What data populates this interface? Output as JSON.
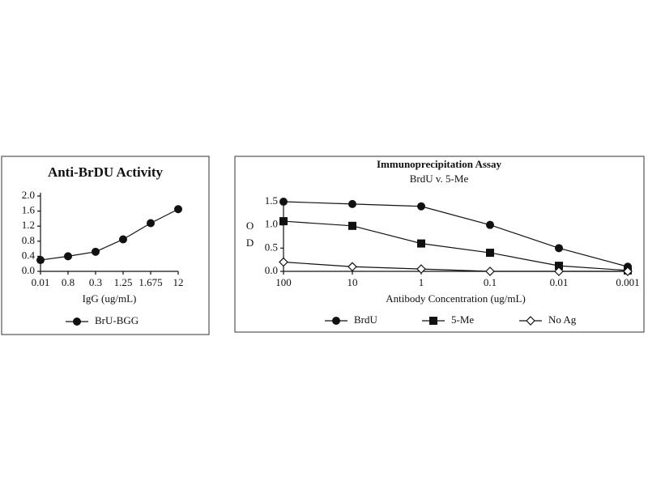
{
  "chart_data": [
    {
      "type": "line",
      "title": "Anti-BrDU Activity",
      "x_label": "IgG (ug/mL)",
      "categories": [
        "0.01",
        "0.8",
        "0.3",
        "1.25",
        "1.675",
        "12"
      ],
      "ylim": [
        0,
        2
      ],
      "yticks": [
        {
          "value": 0,
          "label": "0.0"
        },
        0.4,
        0.8,
        1.2,
        1.6,
        {
          "value": 2,
          "label": "2.0"
        }
      ],
      "series": [
        {
          "name": "BrU-BGG",
          "color": "#111111",
          "marker": "circle",
          "values": [
            0.3,
            0.4,
            0.52,
            0.85,
            1.28,
            1.65
          ]
        }
      ]
    },
    {
      "type": "line",
      "title": "Immunoprecipitation Assay",
      "subtitle": "BrdU v. 5-Me",
      "x_label": "Antibody Concentration (ug/mL)",
      "y_label": "OD",
      "categories": [
        "100",
        "10",
        "1",
        "0.1",
        "0.01",
        "0.001"
      ],
      "ylim": [
        0,
        1.5
      ],
      "yticks": [
        {
          "value": 0,
          "label": "0.0"
        },
        0.5,
        {
          "value": 1,
          "label": "1.0"
        },
        1.5
      ],
      "series": [
        {
          "name": "BrdU",
          "color": "#111111",
          "marker": "circle",
          "values": [
            1.5,
            1.45,
            1.4,
            1.0,
            0.5,
            0.1
          ]
        },
        {
          "name": "5-Me",
          "color": "#111111",
          "marker": "square",
          "values": [
            1.08,
            0.98,
            0.6,
            0.4,
            0.12,
            0.02
          ]
        },
        {
          "name": "No Ag",
          "color": "#111111",
          "marker": "diamond",
          "values": [
            0.2,
            0.1,
            0.05,
            0,
            0,
            0
          ]
        }
      ]
    }
  ]
}
